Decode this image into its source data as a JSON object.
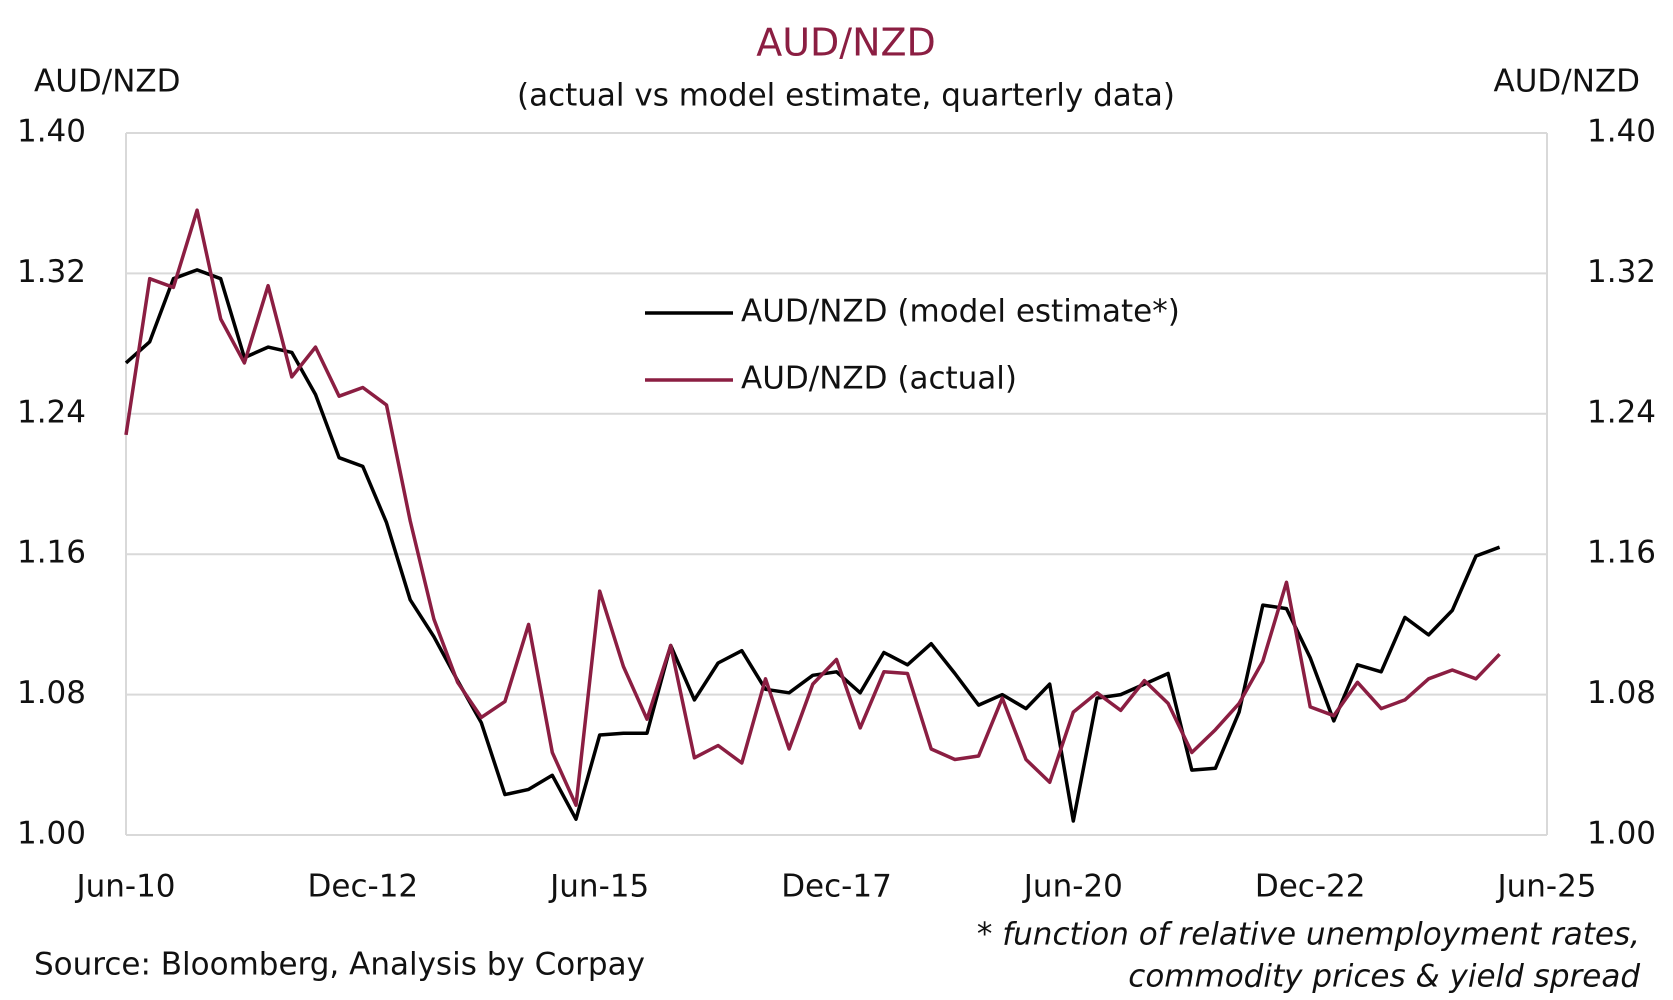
{
  "chart_data": {
    "type": "line",
    "title": "AUD/NZD",
    "subtitle": "(actual vs model estimate, quarterly data)",
    "y_label": "AUD/NZD",
    "y2_label": "AUD/NZD",
    "source": "Source: Bloomberg, Analysis by Corpay",
    "footnote": [
      "* function of relative unemployment rates,",
      "commodity prices & yield spread"
    ],
    "categories": [
      "Jun-10",
      null,
      null,
      null,
      null,
      null,
      null,
      null,
      null,
      null,
      "Dec-12",
      null,
      null,
      null,
      null,
      null,
      null,
      null,
      null,
      null,
      "Jun-15",
      null,
      null,
      null,
      null,
      null,
      null,
      null,
      null,
      null,
      "Dec-17",
      null,
      null,
      null,
      null,
      null,
      null,
      null,
      null,
      null,
      "Jun-20",
      null,
      null,
      null,
      null,
      null,
      null,
      null,
      null,
      null,
      "Dec-22",
      null,
      null,
      null,
      null,
      null,
      null,
      null,
      null,
      null,
      "Jun-25"
    ],
    "series": [
      {
        "name": "AUD/NZD (model estimate*)",
        "color": "#000000",
        "values": [
          1.269,
          1.281,
          1.317,
          1.322,
          1.317,
          1.272,
          1.278,
          1.275,
          1.251,
          1.215,
          1.21,
          1.178,
          1.134,
          1.113,
          1.088,
          1.064,
          1.023,
          1.026,
          1.034,
          1.009,
          1.057,
          1.058,
          1.058,
          1.108,
          1.077,
          1.098,
          1.105,
          1.083,
          1.081,
          1.091,
          1.093,
          1.081,
          1.104,
          1.097,
          1.109,
          1.092,
          1.074,
          1.08,
          1.072,
          1.086,
          1.008,
          1.078,
          1.08,
          1.086,
          1.092,
          1.037,
          1.038,
          1.07,
          1.131,
          1.129,
          1.101,
          1.065,
          1.097,
          1.093,
          1.124,
          1.114,
          1.128,
          1.159,
          1.164,
          null,
          null
        ]
      },
      {
        "name": "AUD/NZD (actual)",
        "color": "#8b1e42",
        "values": [
          1.228,
          1.317,
          1.312,
          1.356,
          1.294,
          1.269,
          1.313,
          1.261,
          1.278,
          1.25,
          1.255,
          1.245,
          1.179,
          1.123,
          1.087,
          1.067,
          1.076,
          1.12,
          1.047,
          1.017,
          1.139,
          1.096,
          1.066,
          1.108,
          1.044,
          1.051,
          1.041,
          1.089,
          1.049,
          1.086,
          1.1,
          1.061,
          1.093,
          1.092,
          1.049,
          1.043,
          1.045,
          1.078,
          1.043,
          1.03,
          1.07,
          1.081,
          1.071,
          1.088,
          1.075,
          1.047,
          1.06,
          1.075,
          1.099,
          1.144,
          1.073,
          1.068,
          1.087,
          1.072,
          1.077,
          1.089,
          1.094,
          1.089,
          1.103,
          null,
          null
        ]
      }
    ],
    "ylim": [
      1.0,
      1.4
    ],
    "yticks": [
      {
        "value": 1.0,
        "label": "1.00"
      },
      1.08,
      1.16,
      1.24,
      1.32,
      {
        "value": 1.4,
        "label": "1.40"
      }
    ],
    "y2lim": [
      1.0,
      1.4
    ],
    "y2ticks": [
      {
        "value": 1.0,
        "label": "1.00"
      },
      1.08,
      1.16,
      1.24,
      1.32,
      {
        "value": 1.4,
        "label": "1.40"
      }
    ],
    "grid": true
  }
}
